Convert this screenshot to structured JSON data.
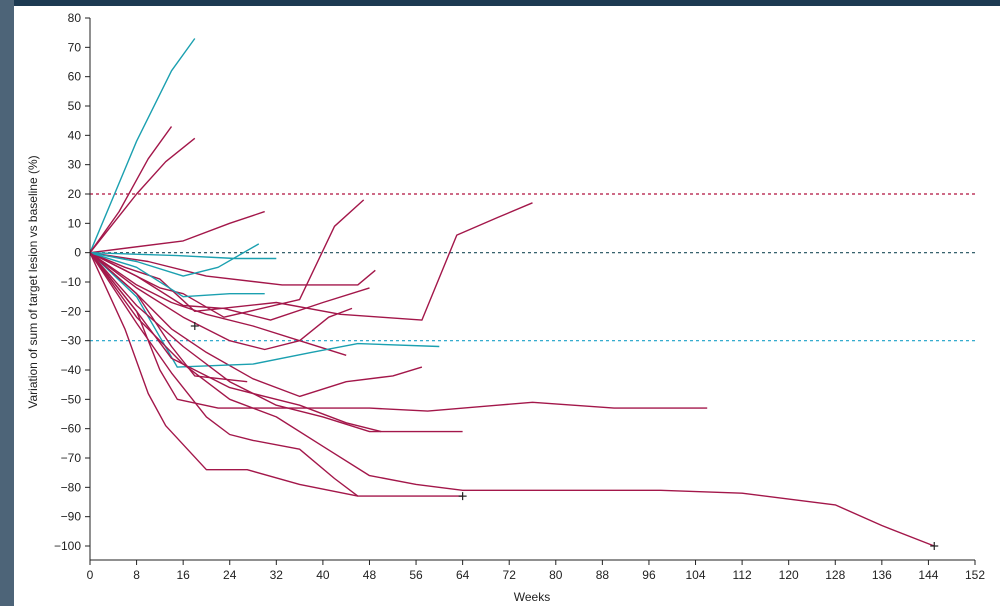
{
  "chart_data": {
    "type": "line",
    "xlabel": "Weeks",
    "ylabel": "Variation of sum of target lesion vs baseline (%)",
    "xlim": [
      0,
      152
    ],
    "ylim": [
      -105,
      80
    ],
    "xticks": [
      0,
      8,
      16,
      24,
      32,
      40,
      48,
      56,
      64,
      72,
      80,
      88,
      96,
      104,
      112,
      120,
      128,
      136,
      144,
      152
    ],
    "yticks": [
      80,
      70,
      60,
      50,
      40,
      30,
      20,
      10,
      0,
      -10,
      -20,
      -30,
      -40,
      -50,
      -60,
      -70,
      -80,
      -90,
      -100
    ],
    "reference_lines": [
      {
        "y": 20,
        "style": "dashed",
        "color": "#b0123f"
      },
      {
        "y": 0,
        "style": "dashed",
        "color": "#1d4d5a"
      },
      {
        "y": -30,
        "style": "dashed",
        "color": "#1aa0c8"
      }
    ],
    "colors": {
      "primary": "#a3174a",
      "secondary": "#1ba0b0"
    },
    "grid": false,
    "series": [
      {
        "color": "#1ba0b0",
        "points": [
          [
            0,
            0
          ],
          [
            8,
            38
          ],
          [
            14,
            62
          ],
          [
            18,
            73
          ]
        ]
      },
      {
        "color": "#a3174a",
        "points": [
          [
            0,
            0
          ],
          [
            5,
            14
          ],
          [
            10,
            32
          ],
          [
            14,
            43
          ]
        ]
      },
      {
        "color": "#a3174a",
        "points": [
          [
            0,
            0
          ],
          [
            8,
            20
          ],
          [
            13,
            31
          ],
          [
            18,
            39
          ]
        ]
      },
      {
        "color": "#a3174a",
        "points": [
          [
            0,
            0
          ],
          [
            16,
            4
          ],
          [
            24,
            10
          ],
          [
            30,
            14
          ]
        ]
      },
      {
        "color": "#a3174a",
        "points": [
          [
            0,
            0
          ],
          [
            10,
            -3
          ],
          [
            20,
            -8
          ],
          [
            33,
            -11
          ],
          [
            46,
            -11
          ],
          [
            49,
            -6
          ]
        ]
      },
      {
        "color": "#a3174a",
        "points": [
          [
            0,
            0
          ],
          [
            6,
            -6
          ],
          [
            12,
            -12
          ],
          [
            16,
            -14
          ],
          [
            23,
            -22
          ],
          [
            36,
            -16
          ],
          [
            42,
            9
          ],
          [
            47,
            18
          ]
        ]
      },
      {
        "color": "#a3174a",
        "points": [
          [
            0,
            0
          ],
          [
            8,
            -8
          ],
          [
            16,
            -18
          ],
          [
            23,
            -19
          ],
          [
            31,
            -23
          ],
          [
            40,
            -17
          ],
          [
            48,
            -12
          ]
        ]
      },
      {
        "color": "#a3174a",
        "points": [
          [
            0,
            0
          ],
          [
            6,
            -5
          ],
          [
            12,
            -9
          ],
          [
            18,
            -20
          ],
          [
            32,
            -17
          ],
          [
            43,
            -21
          ],
          [
            50,
            -22
          ],
          [
            57,
            -23
          ],
          [
            63,
            6
          ],
          [
            70,
            12
          ],
          [
            76,
            17
          ]
        ]
      },
      {
        "color": "#a3174a",
        "points": [
          [
            0,
            0
          ],
          [
            8,
            -11
          ],
          [
            14,
            -17
          ],
          [
            20,
            -21
          ],
          [
            28,
            -25
          ],
          [
            36,
            -30
          ],
          [
            44,
            -35
          ]
        ]
      },
      {
        "color": "#1ba0b0",
        "points": [
          [
            0,
            0
          ],
          [
            8,
            -3
          ],
          [
            16,
            -8
          ],
          [
            22,
            -5
          ],
          [
            29,
            3
          ]
        ]
      },
      {
        "color": "#1ba0b0",
        "points": [
          [
            0,
            0
          ],
          [
            15,
            -1
          ],
          [
            25,
            -2
          ],
          [
            32,
            -2
          ]
        ]
      },
      {
        "color": "#1ba0b0",
        "points": [
          [
            0,
            0
          ],
          [
            8,
            -5
          ],
          [
            16,
            -15
          ],
          [
            24,
            -14
          ],
          [
            30,
            -14
          ]
        ]
      },
      {
        "color": "#a3174a",
        "points": [
          [
            0,
            0
          ],
          [
            8,
            -12
          ],
          [
            16,
            -22
          ],
          [
            24,
            -30
          ],
          [
            30,
            -33
          ],
          [
            36,
            -30
          ],
          [
            41,
            -22
          ],
          [
            45,
            -19
          ]
        ]
      },
      {
        "color": "#a3174a",
        "points": [
          [
            0,
            0
          ],
          [
            8,
            -14
          ],
          [
            14,
            -26
          ],
          [
            20,
            -34
          ],
          [
            28,
            -43
          ],
          [
            36,
            -49
          ],
          [
            44,
            -44
          ],
          [
            52,
            -42
          ],
          [
            57,
            -39
          ]
        ]
      },
      {
        "color": "#1ba0b0",
        "points": [
          [
            0,
            0
          ],
          [
            8,
            -15
          ],
          [
            15,
            -39
          ],
          [
            28,
            -38
          ],
          [
            38,
            -34
          ],
          [
            46,
            -31
          ],
          [
            60,
            -32
          ]
        ]
      },
      {
        "color": "#a3174a",
        "points": [
          [
            0,
            0
          ],
          [
            8,
            -14
          ],
          [
            14,
            -32
          ],
          [
            18,
            -42
          ],
          [
            27,
            -44
          ]
        ]
      },
      {
        "color": "#a3174a",
        "points": [
          [
            0,
            0
          ],
          [
            8,
            -18
          ],
          [
            16,
            -32
          ],
          [
            24,
            -44
          ],
          [
            32,
            -52
          ],
          [
            40,
            -56
          ],
          [
            48,
            -61
          ],
          [
            64,
            -61
          ]
        ]
      },
      {
        "color": "#a3174a",
        "points": [
          [
            0,
            0
          ],
          [
            8,
            -20
          ],
          [
            12,
            -40
          ],
          [
            15,
            -50
          ],
          [
            22,
            -53
          ],
          [
            30,
            -53
          ],
          [
            40,
            -53
          ],
          [
            48,
            -53
          ],
          [
            58,
            -54
          ],
          [
            70,
            -52
          ],
          [
            76,
            -51
          ],
          [
            90,
            -53
          ],
          [
            106,
            -53
          ]
        ]
      },
      {
        "color": "#a3174a",
        "points": [
          [
            0,
            0
          ],
          [
            8,
            -20
          ],
          [
            14,
            -36
          ],
          [
            24,
            -46
          ],
          [
            36,
            -52
          ],
          [
            44,
            -58
          ],
          [
            50,
            -61
          ]
        ]
      },
      {
        "color": "#a3174a",
        "points": [
          [
            0,
            0
          ],
          [
            8,
            -22
          ],
          [
            16,
            -38
          ],
          [
            24,
            -50
          ],
          [
            32,
            -56
          ],
          [
            40,
            -66
          ],
          [
            48,
            -76
          ],
          [
            56,
            -79
          ],
          [
            64,
            -81
          ],
          [
            80,
            -81
          ],
          [
            90,
            -81
          ],
          [
            98,
            -81
          ],
          [
            112,
            -82
          ],
          [
            120,
            -84
          ],
          [
            128,
            -86
          ],
          [
            136,
            -93
          ],
          [
            145,
            -100
          ]
        ]
      },
      {
        "color": "#a3174a",
        "points": [
          [
            0,
            0
          ],
          [
            8,
            -24
          ],
          [
            14,
            -41
          ],
          [
            20,
            -56
          ],
          [
            24,
            -62
          ],
          [
            28,
            -64
          ],
          [
            36,
            -67
          ],
          [
            42,
            -77
          ],
          [
            46,
            -83
          ],
          [
            64,
            -83
          ]
        ]
      },
      {
        "color": "#a3174a",
        "points": [
          [
            0,
            0
          ],
          [
            6,
            -26
          ],
          [
            10,
            -48
          ],
          [
            13,
            -59
          ],
          [
            20,
            -74
          ],
          [
            27,
            -74
          ],
          [
            36,
            -79
          ],
          [
            46,
            -83
          ]
        ]
      }
    ],
    "censored_markers": [
      {
        "x": 18,
        "y": -25
      },
      {
        "x": 64,
        "y": -83
      },
      {
        "x": 145,
        "y": -100
      }
    ]
  }
}
